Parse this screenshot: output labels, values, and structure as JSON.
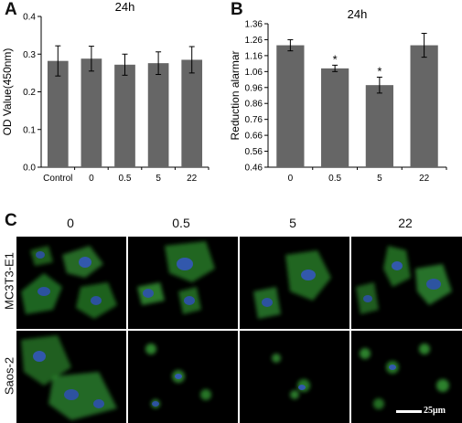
{
  "panels": {
    "a": "A",
    "b": "B",
    "c": "C"
  },
  "chart_data": [
    {
      "type": "bar",
      "title": "24h",
      "xlabel": "",
      "ylabel": "OD Value(450nm)",
      "categories": [
        "Control",
        "0",
        "0.5",
        "5",
        "22"
      ],
      "values": [
        0.282,
        0.288,
        0.272,
        0.276,
        0.285
      ],
      "errors": [
        0.04,
        0.033,
        0.028,
        0.03,
        0.035
      ],
      "ylim": [
        0.0,
        0.4
      ],
      "yticks": [
        "0.0",
        "0.1",
        "0.2",
        "0.3",
        "0.4"
      ],
      "significance": [
        "",
        "",
        "",
        "",
        ""
      ],
      "bar_color": "#666666",
      "grid": false
    },
    {
      "type": "bar",
      "title": "24h",
      "xlabel": "",
      "ylabel": "Reduction alarmar",
      "categories": [
        "0",
        "0.5",
        "5",
        "22"
      ],
      "values": [
        1.225,
        1.08,
        0.975,
        1.225
      ],
      "errors": [
        0.035,
        0.02,
        0.05,
        0.075
      ],
      "ylim": [
        0.46,
        1.36
      ],
      "yticks": [
        "0.46",
        "0.56",
        "0.66",
        "0.76",
        "0.86",
        "0.96",
        "1.06",
        "1.16",
        "1.26",
        "1.36"
      ],
      "significance": [
        "",
        "*",
        "*",
        ""
      ],
      "bar_color": "#666666",
      "grid": false
    }
  ],
  "micrographs": {
    "columns": [
      "0",
      "0.5",
      "5",
      "22"
    ],
    "rows": [
      "MC3T3-E1",
      "Saos-2"
    ],
    "scale_bar": "25μm"
  }
}
